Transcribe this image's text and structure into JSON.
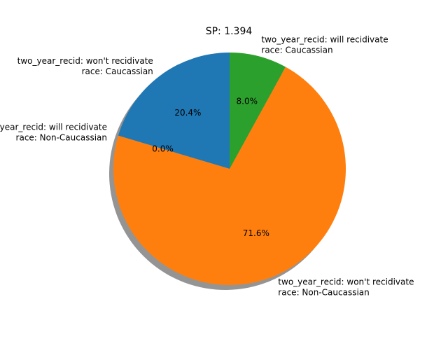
{
  "chart_data": {
    "type": "pie",
    "title": "SP: 1.394",
    "slices": [
      {
        "label": [
          "two_year_recid: won't recidivate",
          "race: Caucassian"
        ],
        "value": 20.4,
        "pct_label": "20.4%",
        "color": "#1f77b4"
      },
      {
        "label": [
          "two_year_recid: will recidivate",
          "race: Non-Caucassian"
        ],
        "value": 0.0,
        "pct_label": "0.0%",
        "color": "#d62728"
      },
      {
        "label": [
          "two_year_recid: won't recidivate",
          "race: Non-Caucassian"
        ],
        "value": 71.6,
        "pct_label": "71.6%",
        "color": "#ff7f0e"
      },
      {
        "label": [
          "two_year_recid: will recidivate",
          "race: Caucassian"
        ],
        "value": 8.0,
        "pct_label": "8.0%",
        "color": "#2ca02c"
      }
    ],
    "start_angle_deg": 90,
    "direction": "counterclockwise",
    "shadow": true
  }
}
